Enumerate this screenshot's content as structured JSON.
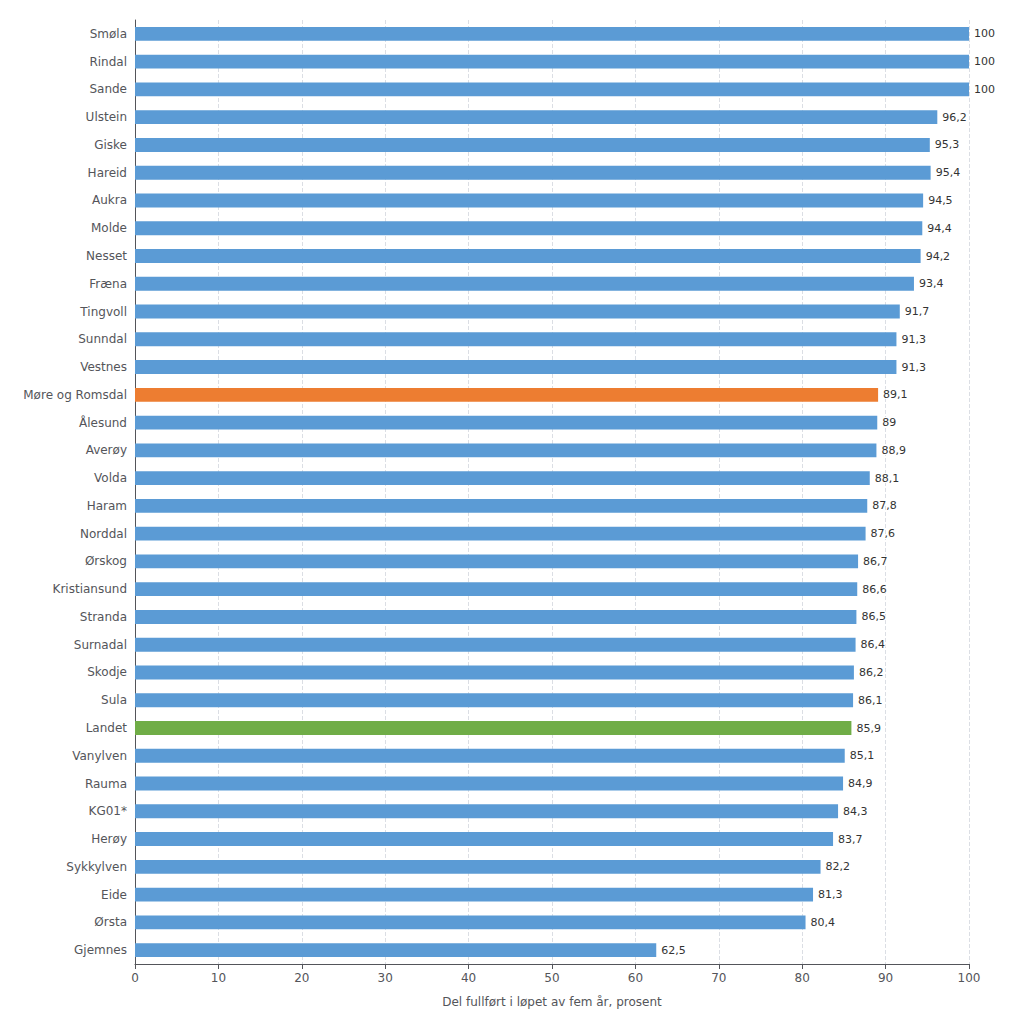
{
  "chart_data": {
    "type": "bar",
    "orientation": "horizontal",
    "categories": [
      "Smøla",
      "Rindal",
      "Sande",
      "Ulstein",
      "Giske",
      "Hareid",
      "Aukra",
      "Molde",
      "Nesset",
      "Fræna",
      "Tingvoll",
      "Sunndal",
      "Vestnes",
      "Møre og Romsdal",
      "Ålesund",
      "Averøy",
      "Volda",
      "Haram",
      "Norddal",
      "Ørskog",
      "Kristiansund",
      "Stranda",
      "Surnadal",
      "Skodje",
      "Sula",
      "Landet",
      "Vanylven",
      "Rauma",
      "KG01*",
      "Herøy",
      "Sykkylven",
      "Eide",
      "Ørsta",
      "Gjemnes"
    ],
    "values": [
      100,
      100,
      100,
      96.2,
      95.3,
      95.4,
      94.5,
      94.4,
      94.2,
      93.4,
      91.7,
      91.3,
      91.3,
      89.1,
      89,
      88.9,
      88.1,
      87.8,
      87.6,
      86.7,
      86.6,
      86.5,
      86.4,
      86.2,
      86.1,
      85.9,
      85.1,
      84.9,
      84.3,
      83.7,
      82.2,
      81.3,
      80.4,
      62.5
    ],
    "value_labels": [
      "100",
      "100",
      "100",
      "96,2",
      "95,3",
      "95,4",
      "94,5",
      "94,4",
      "94,2",
      "93,4",
      "91,7",
      "91,3",
      "91,3",
      "89,1",
      "89",
      "88,9",
      "88,1",
      "87,8",
      "87,6",
      "86,7",
      "86,6",
      "86,5",
      "86,4",
      "86,2",
      "86,1",
      "85,9",
      "85,1",
      "84,9",
      "84,3",
      "83,7",
      "82,2",
      "81,3",
      "80,4",
      "62,5"
    ],
    "data_labels": true,
    "colors": [
      "#5b9bd5",
      "#5b9bd5",
      "#5b9bd5",
      "#5b9bd5",
      "#5b9bd5",
      "#5b9bd5",
      "#5b9bd5",
      "#5b9bd5",
      "#5b9bd5",
      "#5b9bd5",
      "#5b9bd5",
      "#5b9bd5",
      "#5b9bd5",
      "#ed7d31",
      "#5b9bd5",
      "#5b9bd5",
      "#5b9bd5",
      "#5b9bd5",
      "#5b9bd5",
      "#5b9bd5",
      "#5b9bd5",
      "#5b9bd5",
      "#5b9bd5",
      "#5b9bd5",
      "#5b9bd5",
      "#70ad47",
      "#5b9bd5",
      "#5b9bd5",
      "#5b9bd5",
      "#5b9bd5",
      "#5b9bd5",
      "#5b9bd5",
      "#5b9bd5",
      "#5b9bd5"
    ],
    "xlabel": "Del fullført i løpet av fem år, prosent",
    "xlim": [
      0,
      100
    ],
    "xticks": [
      0,
      10,
      20,
      30,
      40,
      50,
      60,
      70,
      80,
      90,
      100
    ],
    "grid": true
  }
}
